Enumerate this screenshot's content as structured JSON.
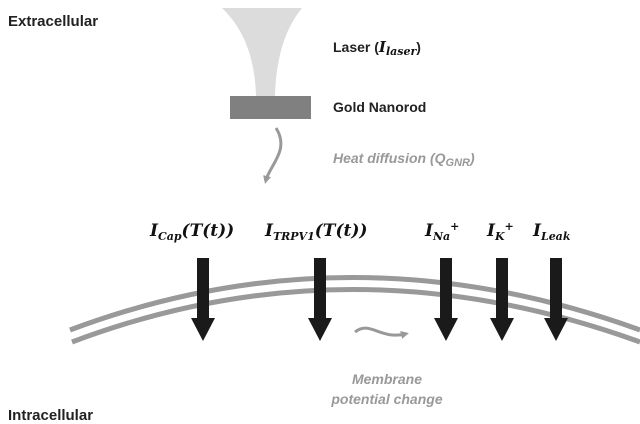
{
  "regions": {
    "top": "Extracellular",
    "bottom": "Intracellular"
  },
  "laser": {
    "text": "Laser (",
    "symbol": "I",
    "sub": "laser",
    "close": ")"
  },
  "nanorod": "Gold Nanorod",
  "heat": {
    "text": "Heat diffusion (",
    "symbol": "Q",
    "sub": "GNR",
    "close": ")"
  },
  "currents": [
    {
      "symbol": "I",
      "sub": "Cap",
      "suffix": "(T(t))"
    },
    {
      "symbol": "I",
      "sub": "TRPV1",
      "suffix": "(T(t))"
    },
    {
      "symbol": "I",
      "sub": "Na",
      "sup": "+"
    },
    {
      "symbol": "I",
      "sub": "K",
      "sup": "+"
    },
    {
      "symbol": "I",
      "sub": "Leak"
    }
  ],
  "membrane": [
    "Membrane",
    "potential change"
  ]
}
